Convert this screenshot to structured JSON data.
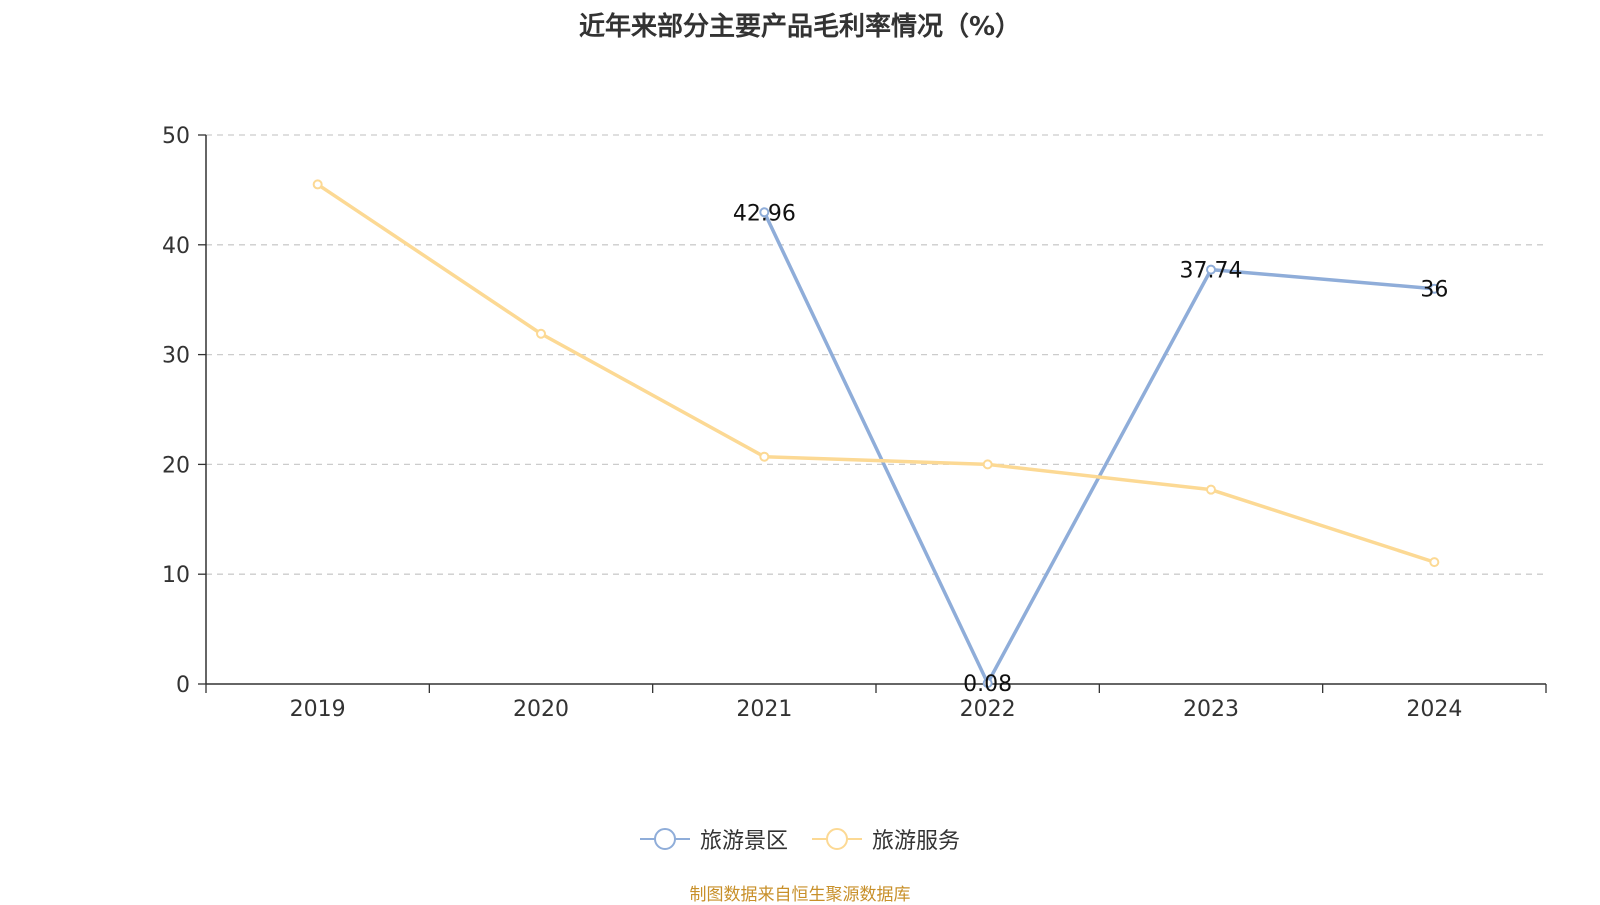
{
  "chart_data": {
    "type": "line",
    "title": "近年来部分主要产品毛利率情况（%）",
    "xlabel": "",
    "ylabel": "",
    "categories": [
      "2019",
      "2020",
      "2021",
      "2022",
      "2023",
      "2024"
    ],
    "ylim": [
      0,
      50
    ],
    "yticks": [
      "0",
      "10",
      "20",
      "30",
      "40",
      "50"
    ],
    "grid": true,
    "legend_position": "bottom-center",
    "series": [
      {
        "name": "旅游景区",
        "color": "#8fadd9",
        "values": [
          null,
          null,
          42.96,
          0.08,
          37.74,
          36
        ],
        "labels": [
          "",
          "",
          "42.96",
          "0.08",
          "37.74",
          "36"
        ]
      },
      {
        "name": "旅游服务",
        "color": "#fcd994",
        "values": [
          45.5,
          31.9,
          20.7,
          20.0,
          17.7,
          11.1
        ],
        "labels": [
          "",
          "",
          "",
          "",
          "",
          ""
        ]
      }
    ]
  },
  "source_note": "制图数据来自恒生聚源数据库"
}
